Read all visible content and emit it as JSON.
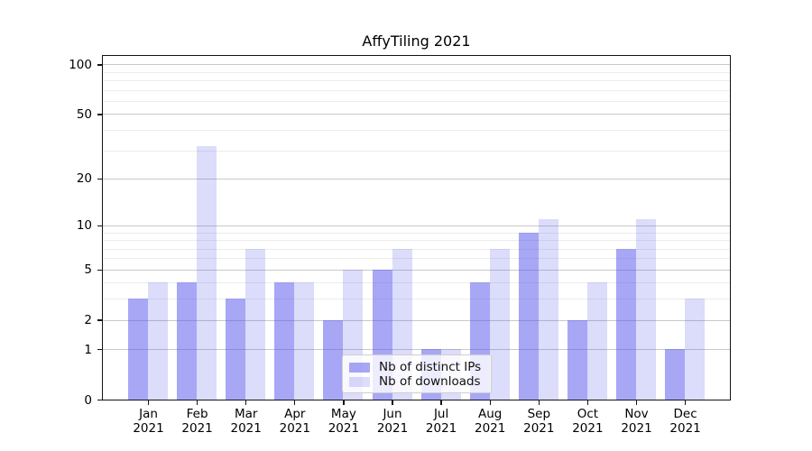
{
  "title": "AffyTiling 2021",
  "chart_data": {
    "type": "bar",
    "title": "AffyTiling 2021",
    "xlabel": "",
    "ylabel": "",
    "yscale": "log1p",
    "ylim": [
      0,
      115
    ],
    "grid": true,
    "legend_position": "lower center",
    "yticks": [
      0,
      1,
      2,
      5,
      10,
      20,
      50,
      100
    ],
    "y_minor_gridlines": [
      3,
      4,
      6,
      7,
      8,
      9,
      30,
      40,
      60,
      70,
      80,
      90
    ],
    "categories": [
      "Jan\n2021",
      "Feb\n2021",
      "Mar\n2021",
      "Apr\n2021",
      "May\n2021",
      "Jun\n2021",
      "Jul\n2021",
      "Aug\n2021",
      "Sep\n2021",
      "Oct\n2021",
      "Nov\n2021",
      "Dec\n2021"
    ],
    "series": [
      {
        "name": "Nb of distinct IPs",
        "color": "rgba(80,80,235,0.5)",
        "values": [
          3,
          4,
          3,
          4,
          2,
          5,
          1,
          4,
          9,
          2,
          7,
          1
        ]
      },
      {
        "name": "Nb of downloads",
        "color": "rgba(80,80,235,0.2)",
        "values": [
          4,
          32,
          7,
          4,
          5,
          7,
          1,
          7,
          11,
          4,
          11,
          3
        ]
      }
    ],
    "colors": {
      "grid_major": "#c9c9c9",
      "grid_minor": "#ececec",
      "spine": "#141414",
      "background": "#ffffff"
    }
  }
}
